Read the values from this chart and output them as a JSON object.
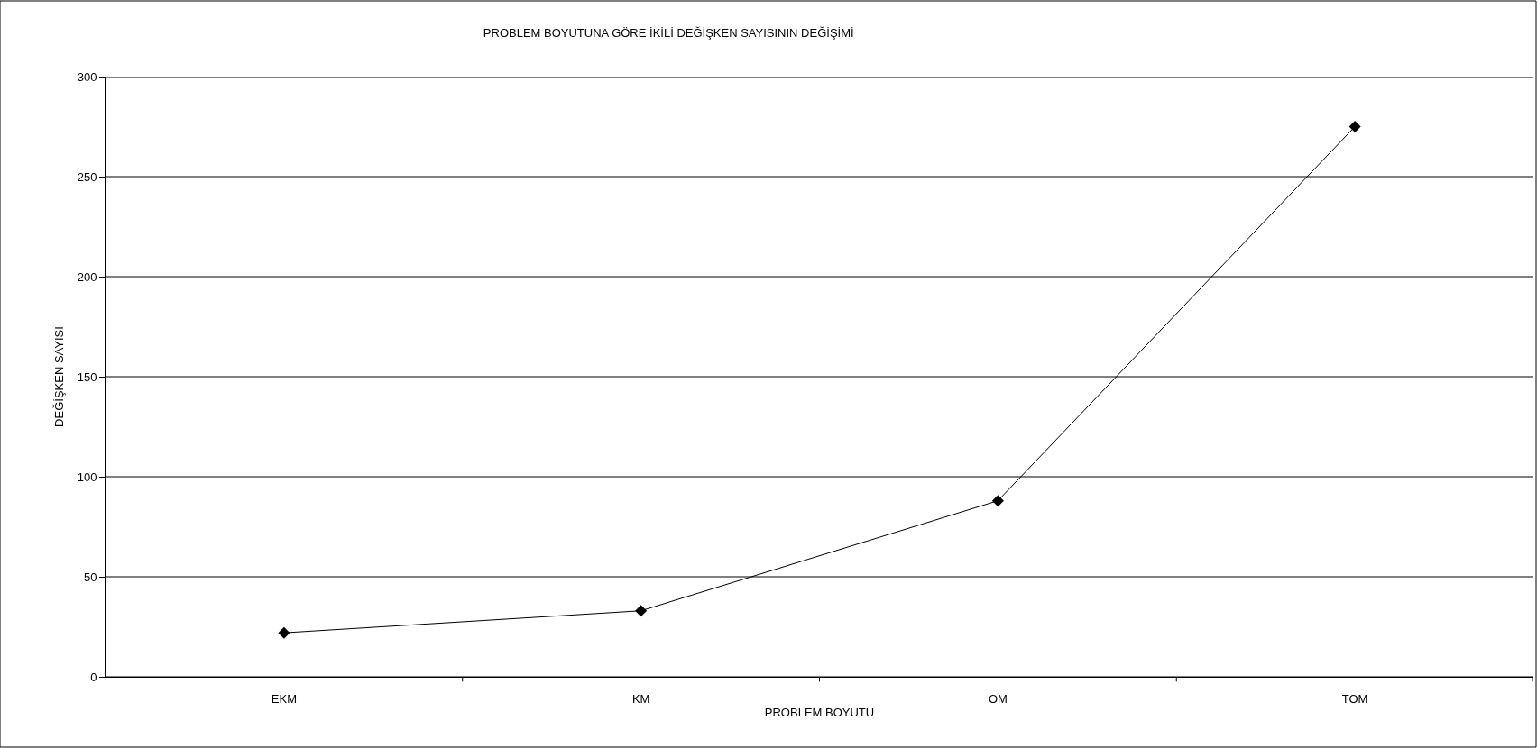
{
  "chart_data": {
    "type": "line",
    "title": "PROBLEM BOYUTUNA GÖRE İKİLİ DEĞİŞKEN SAYISININ DEĞİŞİMİ",
    "xlabel": "PROBLEM BOYUTU",
    "ylabel": "DEĞİŞKEN SAYISI",
    "categories": [
      "EKM",
      "KM",
      "OM",
      "TOM"
    ],
    "series": [
      {
        "color": "#000000",
        "values": [
          22,
          33,
          88,
          275
        ]
      }
    ],
    "ylim": [
      0,
      300
    ],
    "yticks": [
      0,
      50,
      100,
      150,
      200,
      250,
      300
    ],
    "grid": "y",
    "marker": "diamond",
    "line_style": "solid"
  }
}
